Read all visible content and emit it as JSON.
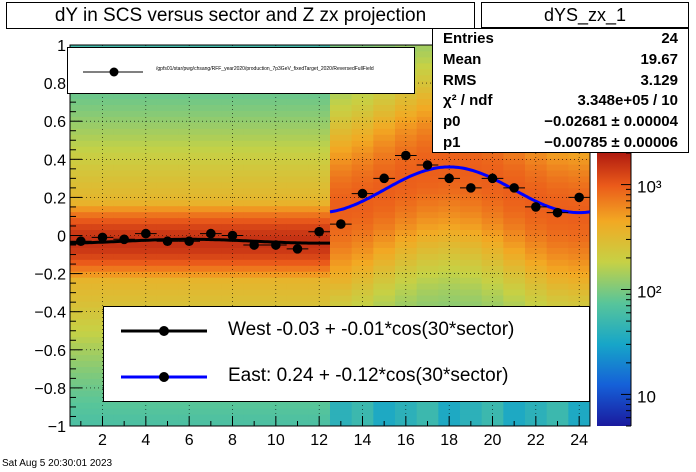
{
  "title": "dY in SCS versus sector and Z zx projection",
  "stats": {
    "name": "dYS_zx_1",
    "rows": [
      {
        "label": "Entries",
        "value": "24"
      },
      {
        "label": "Mean",
        "value": "19.67"
      },
      {
        "label": "RMS",
        "value": "3.129"
      },
      {
        "label": "χ² / ndf",
        "value": "3.348e+05 / 10"
      },
      {
        "label": "p0",
        "value": "−0.02681 ± 0.00004"
      },
      {
        "label": "p1",
        "value": "−0.00785 ± 0.00006"
      }
    ]
  },
  "legend_small": "/gpfs01/star/pwg/chsang/RFF_year2020/production_7p3GeV_fixedTarget_2020/ReversedFullField",
  "legend": [
    {
      "label": "West -0.03 + -0.01*cos(30*sector)",
      "color": "#000000"
    },
    {
      "label": "East:  0.24 + -0.12*cos(30*sector)",
      "color": "#0000ff"
    }
  ],
  "footer": "Sat Aug  5 20:30:01 2023",
  "chart_data": {
    "type": "scatter",
    "title": "dY in SCS versus sector and Z zx projection",
    "xlim": [
      0.5,
      24.5
    ],
    "ylim": [
      -1,
      1
    ],
    "x_ticks": [
      2,
      4,
      6,
      8,
      10,
      12,
      14,
      16,
      18,
      20,
      22,
      24
    ],
    "y_ticks": [
      -1,
      -0.8,
      -0.6,
      -0.4,
      -0.2,
      0,
      0.2,
      0.4,
      0.6,
      0.8,
      1
    ],
    "grid": true,
    "colorbar": {
      "scale": "log",
      "ticks": [
        10,
        100,
        1000
      ],
      "tick_labels": [
        "10",
        "10²",
        "10³"
      ],
      "range": [
        5,
        2000
      ]
    },
    "series": [
      {
        "name": "West -0.03 + -0.01*cos(30*sector)",
        "x": [
          1,
          2,
          3,
          4,
          5,
          6,
          7,
          8,
          9,
          10,
          11,
          12
        ],
        "y": [
          -0.03,
          -0.01,
          -0.02,
          0.01,
          -0.03,
          -0.03,
          0.01,
          0.0,
          -0.05,
          -0.05,
          -0.07,
          0.02
        ],
        "fit": {
          "p0": -0.03,
          "p1": -0.01,
          "x_range": [
            0.5,
            12.5
          ]
        },
        "color": "#000000"
      },
      {
        "name": "East:  0.24 + -0.12*cos(30*sector)",
        "x": [
          13,
          14,
          15,
          16,
          17,
          18,
          19,
          20,
          21,
          22,
          23,
          24
        ],
        "y": [
          0.06,
          0.22,
          0.3,
          0.42,
          0.37,
          0.3,
          0.25,
          0.3,
          0.25,
          0.15,
          0.12,
          0.2
        ],
        "fit": {
          "p0": 0.24,
          "p1": -0.12,
          "x_range": [
            12.5,
            24.5
          ]
        },
        "color": "#0000ff"
      }
    ]
  }
}
